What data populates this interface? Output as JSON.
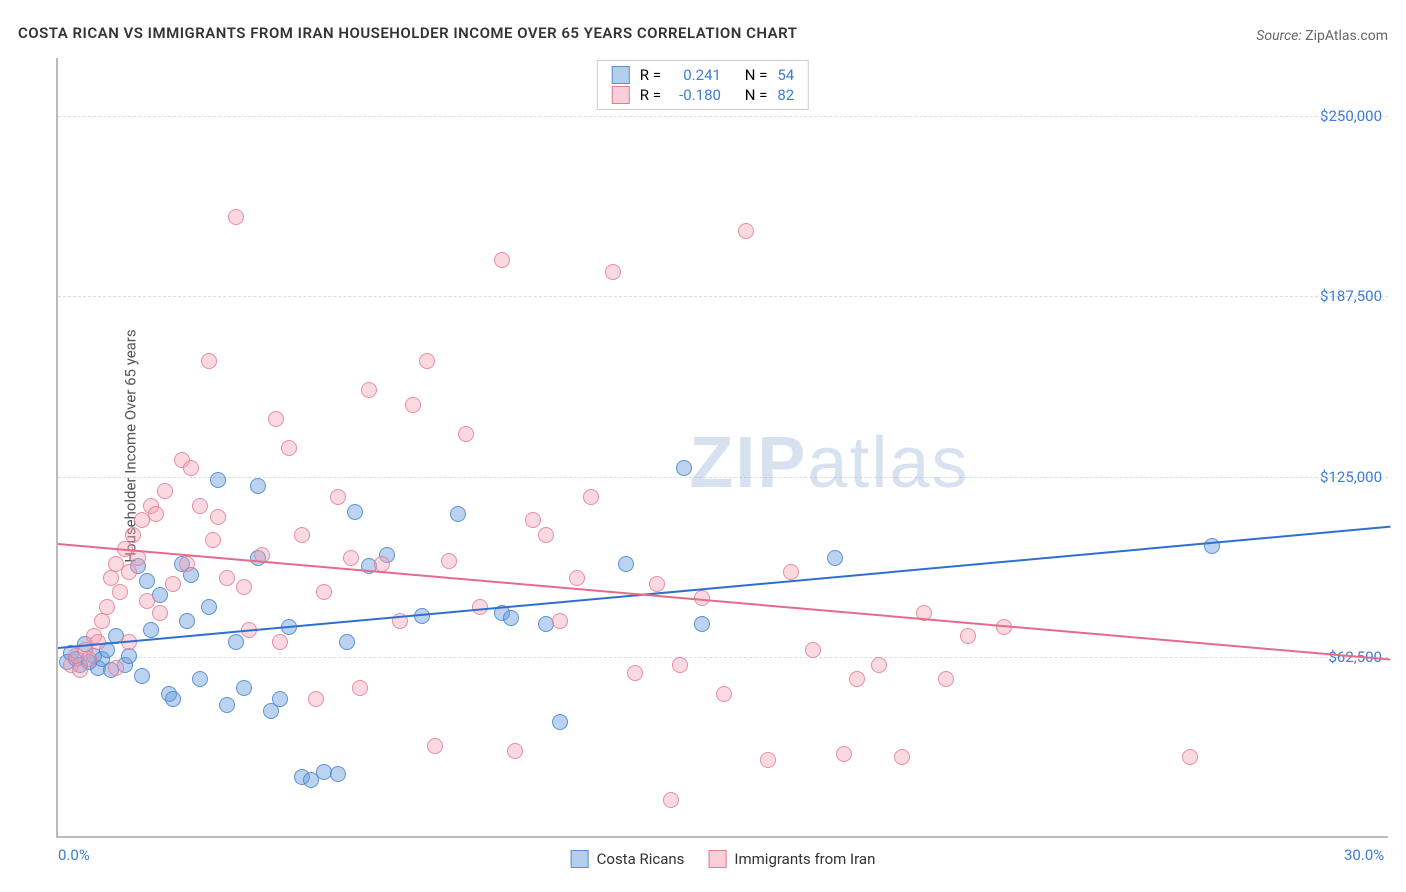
{
  "title": "COSTA RICAN VS IMMIGRANTS FROM IRAN HOUSEHOLDER INCOME OVER 65 YEARS CORRELATION CHART",
  "source_label": "Source:",
  "source_value": "ZipAtlas.com",
  "ylabel": "Householder Income Over 65 years",
  "watermark": {
    "part1": "ZIP",
    "part2": "atlas"
  },
  "chart": {
    "type": "scatter",
    "xlim": [
      0,
      30
    ],
    "ylim": [
      0,
      270000
    ],
    "x_ticks": [
      {
        "v": 0,
        "label": "0.0%"
      },
      {
        "v": 30,
        "label": "30.0%"
      }
    ],
    "y_ticks": [
      {
        "v": 62500,
        "label": "$62,500"
      },
      {
        "v": 125000,
        "label": "$125,000"
      },
      {
        "v": 187500,
        "label": "$187,500"
      },
      {
        "v": 250000,
        "label": "$250,000"
      }
    ],
    "background_color": "#ffffff",
    "grid_color": "#dddddd",
    "axis_color": "#bbbbbb",
    "tick_label_color": "#3b7dd8",
    "marker_size": 16,
    "series": [
      {
        "id": "costa_ricans",
        "name": "Costa Ricans",
        "color_fill": "rgba(105,158,221,0.45)",
        "color_stroke": "rgba(70,130,200,0.8)",
        "trend_color": "#2f6fd0",
        "R": "0.241",
        "N": "54",
        "trend": {
          "x0": 0,
          "y0": 66000,
          "x1": 30,
          "y1": 108000
        },
        "points": [
          [
            0.2,
            61000
          ],
          [
            0.3,
            64000
          ],
          [
            0.5,
            60000
          ],
          [
            0.6,
            67000
          ],
          [
            0.8,
            63000
          ],
          [
            0.9,
            59000
          ],
          [
            1.0,
            62000
          ],
          [
            1.1,
            65000
          ],
          [
            1.2,
            58000
          ],
          [
            1.3,
            70000
          ],
          [
            1.5,
            60000
          ],
          [
            1.6,
            63000
          ],
          [
            1.8,
            94000
          ],
          [
            1.9,
            56000
          ],
          [
            2.0,
            89000
          ],
          [
            2.1,
            72000
          ],
          [
            2.3,
            84000
          ],
          [
            2.5,
            50000
          ],
          [
            2.6,
            48000
          ],
          [
            2.8,
            95000
          ],
          [
            2.9,
            75000
          ],
          [
            3.0,
            91000
          ],
          [
            3.2,
            55000
          ],
          [
            3.4,
            80000
          ],
          [
            3.6,
            124000
          ],
          [
            3.8,
            46000
          ],
          [
            4.0,
            68000
          ],
          [
            4.2,
            52000
          ],
          [
            4.5,
            122000
          ],
          [
            4.5,
            97000
          ],
          [
            4.8,
            44000
          ],
          [
            5.0,
            48000
          ],
          [
            5.2,
            73000
          ],
          [
            5.5,
            21000
          ],
          [
            5.7,
            20000
          ],
          [
            6.0,
            23000
          ],
          [
            6.3,
            22000
          ],
          [
            6.5,
            68000
          ],
          [
            6.7,
            113000
          ],
          [
            7.0,
            94000
          ],
          [
            7.4,
            98000
          ],
          [
            8.2,
            77000
          ],
          [
            9.0,
            112000
          ],
          [
            10.0,
            78000
          ],
          [
            10.2,
            76000
          ],
          [
            11.0,
            74000
          ],
          [
            11.3,
            40000
          ],
          [
            12.8,
            95000
          ],
          [
            14.1,
            128000
          ],
          [
            14.5,
            74000
          ],
          [
            17.5,
            97000
          ],
          [
            26.0,
            101000
          ],
          [
            0.4,
            62000
          ],
          [
            0.7,
            61000
          ]
        ]
      },
      {
        "id": "immigrants_iran",
        "name": "Immigrants from Iran",
        "color_fill": "rgba(245,160,180,0.40)",
        "color_stroke": "rgba(230,120,150,0.8)",
        "trend_color": "#e66a8a",
        "R": "-0.180",
        "N": "82",
        "trend": {
          "x0": 0,
          "y0": 102000,
          "x1": 30,
          "y1": 62000
        },
        "points": [
          [
            0.3,
            60000
          ],
          [
            0.4,
            63000
          ],
          [
            0.5,
            58000
          ],
          [
            0.6,
            65000
          ],
          [
            0.7,
            62000
          ],
          [
            0.8,
            70000
          ],
          [
            0.9,
            68000
          ],
          [
            1.0,
            75000
          ],
          [
            1.1,
            80000
          ],
          [
            1.2,
            90000
          ],
          [
            1.3,
            95000
          ],
          [
            1.4,
            85000
          ],
          [
            1.5,
            100000
          ],
          [
            1.6,
            92000
          ],
          [
            1.7,
            105000
          ],
          [
            1.8,
            97000
          ],
          [
            1.9,
            110000
          ],
          [
            2.0,
            82000
          ],
          [
            2.1,
            115000
          ],
          [
            2.2,
            112000
          ],
          [
            2.4,
            120000
          ],
          [
            2.6,
            88000
          ],
          [
            2.8,
            131000
          ],
          [
            3.0,
            128000
          ],
          [
            3.2,
            115000
          ],
          [
            3.4,
            165000
          ],
          [
            3.6,
            111000
          ],
          [
            3.8,
            90000
          ],
          [
            4.0,
            215000
          ],
          [
            4.3,
            72000
          ],
          [
            4.6,
            98000
          ],
          [
            4.9,
            145000
          ],
          [
            5.2,
            135000
          ],
          [
            5.5,
            105000
          ],
          [
            5.8,
            48000
          ],
          [
            6.0,
            85000
          ],
          [
            6.3,
            118000
          ],
          [
            6.6,
            97000
          ],
          [
            7.0,
            155000
          ],
          [
            7.3,
            95000
          ],
          [
            7.7,
            75000
          ],
          [
            8.0,
            150000
          ],
          [
            8.3,
            165000
          ],
          [
            8.5,
            32000
          ],
          [
            8.8,
            96000
          ],
          [
            9.2,
            140000
          ],
          [
            9.5,
            80000
          ],
          [
            10.0,
            200000
          ],
          [
            10.3,
            30000
          ],
          [
            10.7,
            110000
          ],
          [
            11.0,
            105000
          ],
          [
            11.3,
            75000
          ],
          [
            11.7,
            90000
          ],
          [
            12.0,
            118000
          ],
          [
            12.5,
            196000
          ],
          [
            13.0,
            57000
          ],
          [
            13.5,
            88000
          ],
          [
            14.0,
            60000
          ],
          [
            14.5,
            83000
          ],
          [
            15.0,
            50000
          ],
          [
            15.5,
            210000
          ],
          [
            16.0,
            27000
          ],
          [
            16.5,
            92000
          ],
          [
            17.0,
            65000
          ],
          [
            17.7,
            29000
          ],
          [
            18.0,
            55000
          ],
          [
            18.5,
            60000
          ],
          [
            19.0,
            28000
          ],
          [
            19.5,
            78000
          ],
          [
            20.0,
            55000
          ],
          [
            20.5,
            70000
          ],
          [
            21.3,
            73000
          ],
          [
            1.3,
            59000
          ],
          [
            1.6,
            68000
          ],
          [
            2.3,
            78000
          ],
          [
            2.9,
            95000
          ],
          [
            3.5,
            103000
          ],
          [
            4.2,
            87000
          ],
          [
            5.0,
            68000
          ],
          [
            6.8,
            52000
          ],
          [
            25.5,
            28000
          ],
          [
            13.8,
            13000
          ]
        ]
      }
    ],
    "bottom_legend_items": [
      {
        "series": "costa_ricans",
        "swatch": "blue"
      },
      {
        "series": "immigrants_iran",
        "swatch": "pink"
      }
    ],
    "correlation_legend": {
      "r_label": "R =",
      "n_label": "N ="
    }
  }
}
